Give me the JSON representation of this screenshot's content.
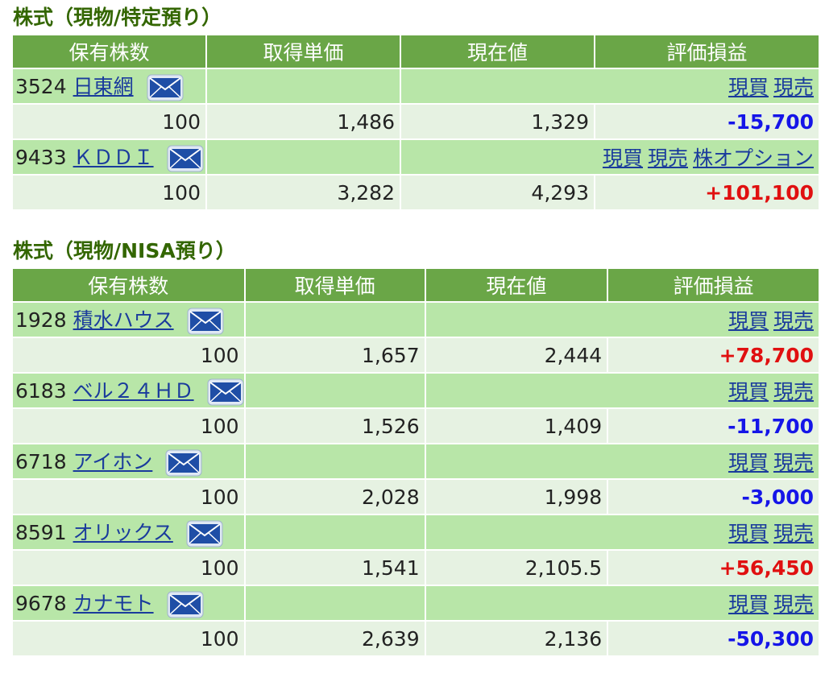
{
  "columns": [
    "保有株数",
    "取得単価",
    "現在値",
    "評価損益"
  ],
  "sections": [
    {
      "title": "株式（現物/特定預り）",
      "rows": [
        {
          "code": "3524",
          "name": "日東網",
          "links": [
            "現買",
            "現売"
          ],
          "shares": "100",
          "cost": "1,486",
          "price": "1,329",
          "pl": "-15,700",
          "sign": "neg"
        },
        {
          "code": "9433",
          "name": "ＫＤＤＩ",
          "links": [
            "現買",
            "現売",
            "株オプション"
          ],
          "shares": "100",
          "cost": "3,282",
          "price": "4,293",
          "pl": "+101,100",
          "sign": "pos"
        }
      ]
    },
    {
      "title": "株式（現物/NISA預り）",
      "rows": [
        {
          "code": "1928",
          "name": "積水ハウス",
          "links": [
            "現買",
            "現売"
          ],
          "shares": "100",
          "cost": "1,657",
          "price": "2,444",
          "pl": "+78,700",
          "sign": "pos"
        },
        {
          "code": "6183",
          "name": "ベル２４ＨＤ",
          "links": [
            "現買",
            "現売"
          ],
          "shares": "100",
          "cost": "1,526",
          "price": "1,409",
          "pl": "-11,700",
          "sign": "neg"
        },
        {
          "code": "6718",
          "name": "アイホン",
          "links": [
            "現買",
            "現売"
          ],
          "shares": "100",
          "cost": "2,028",
          "price": "1,998",
          "pl": "-3,000",
          "sign": "neg"
        },
        {
          "code": "8591",
          "name": "オリックス",
          "links": [
            "現買",
            "現売"
          ],
          "shares": "100",
          "cost": "1,541",
          "price": "2,105.5",
          "pl": "+56,450",
          "sign": "pos"
        },
        {
          "code": "9678",
          "name": "カナモト",
          "links": [
            "現買",
            "現売"
          ],
          "shares": "100",
          "cost": "2,639",
          "price": "2,136",
          "pl": "-50,300",
          "sign": "neg"
        }
      ]
    }
  ],
  "colors": {
    "header_bg": "#6aa647",
    "name_row_bg": "#b8e6a8",
    "value_row_bg": "#e6f2e2",
    "title": "#336600",
    "loss": "#1515e8",
    "gain": "#e01010",
    "link": "#1a3b9c"
  },
  "icons": {
    "mail": "mail-icon"
  }
}
